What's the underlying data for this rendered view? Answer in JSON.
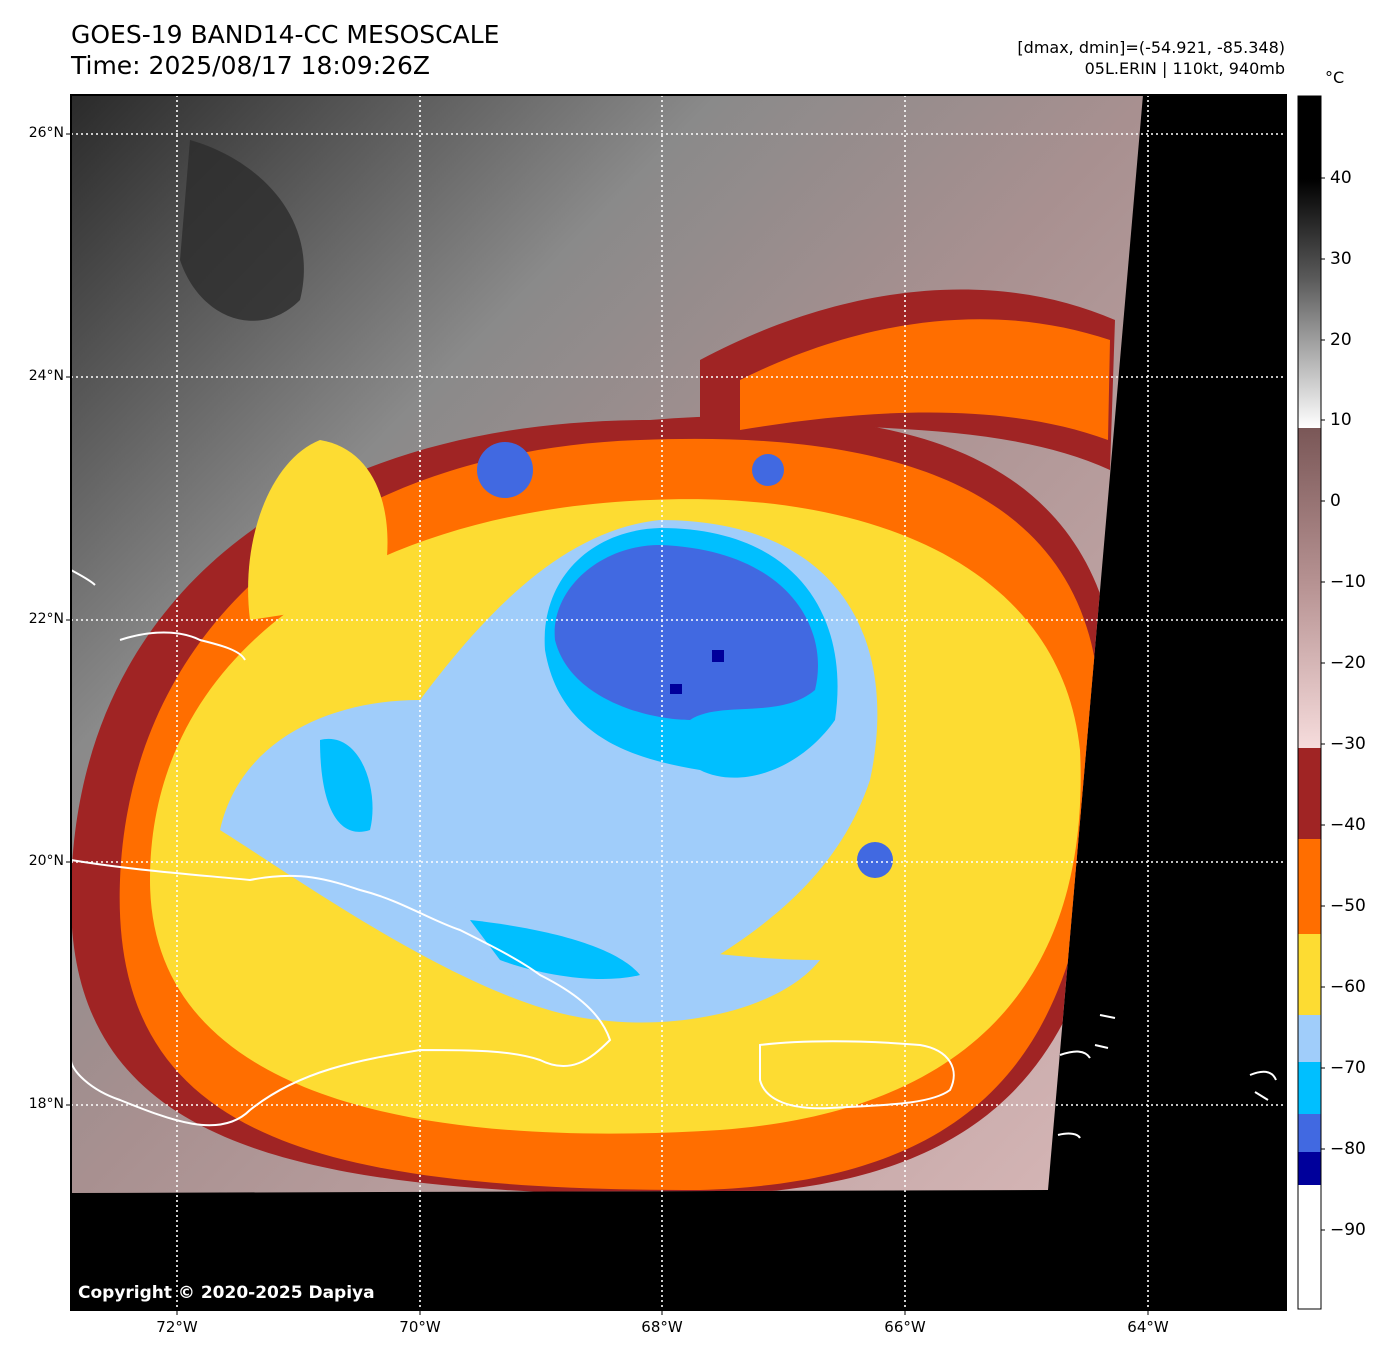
{
  "title": {
    "line1": "GOES-19 BAND14-CC MESOSCALE",
    "line2": "Time: 2025/08/17 18:09:26Z"
  },
  "info": {
    "line1": "[dmax, dmin]=(-54.921, -85.348)",
    "line2": "05L.ERIN | 110kt, 940mb"
  },
  "map": {
    "lat_labels": [
      "26°N",
      "24°N",
      "22°N",
      "20°N",
      "18°N"
    ],
    "lon_labels": [
      "72°W",
      "70°W",
      "68°W",
      "66°W",
      "64°W"
    ],
    "copyright": "Copyright © 2020-2025 Dapiya",
    "gridlines": true
  },
  "colorbar": {
    "unit": "°C",
    "ticks": [
      "40",
      "30",
      "20",
      "10",
      "0",
      "−10",
      "−20",
      "−30",
      "−40",
      "−50",
      "−60",
      "−70",
      "−80",
      "−90"
    ],
    "colors": {
      "black": "#000000",
      "white": "#ffffff",
      "brown_dark": "#7a5757",
      "pink_light": "#f6dcdc",
      "red_dark": "#a02424",
      "orange": "#ff6e00",
      "yellow": "#fddc32",
      "blue_light": "#a0cdfa",
      "cyan": "#00bfff",
      "blue_royal": "#4169e1",
      "navy": "#00009b"
    }
  }
}
